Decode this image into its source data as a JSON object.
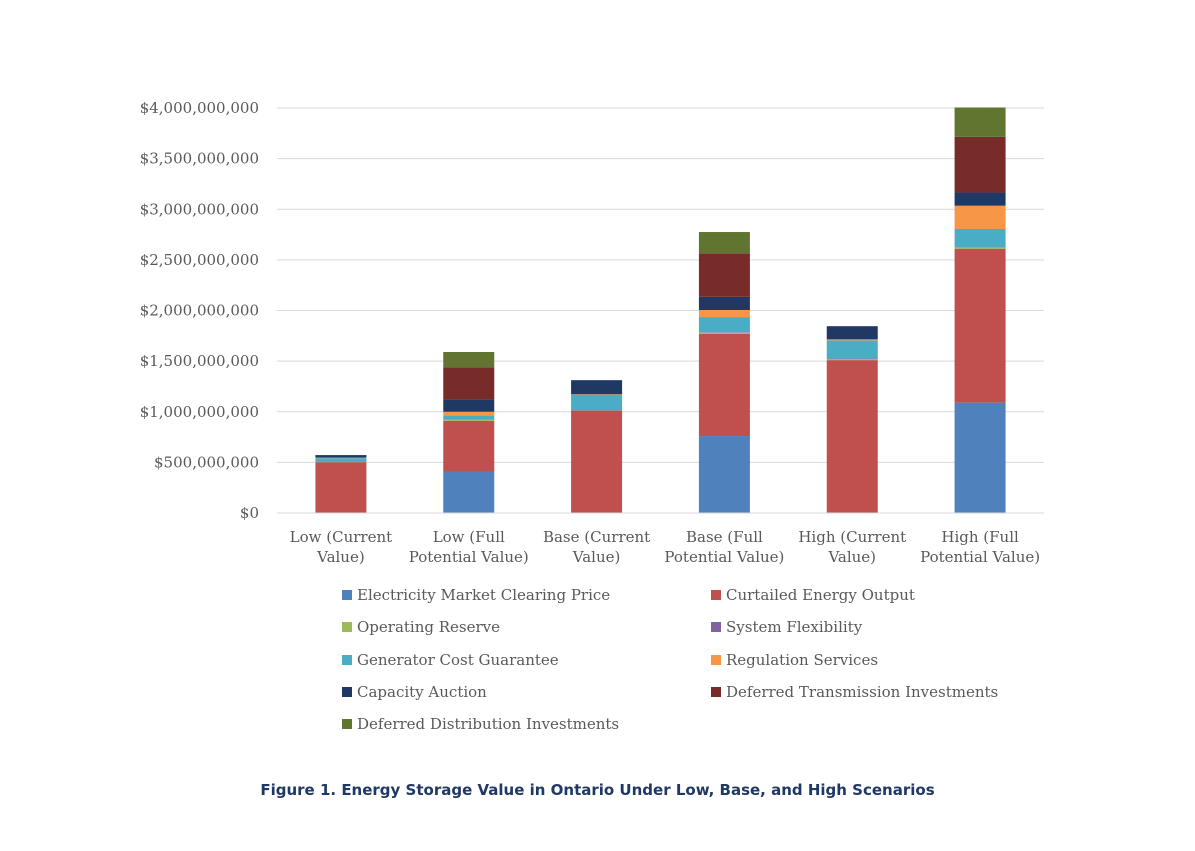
{
  "chart_data": {
    "type": "bar",
    "stacked": true,
    "title": "",
    "xlabel": "",
    "ylabel": "",
    "ylim": [
      0,
      4000000000
    ],
    "yticks": [
      0,
      500000000,
      1000000000,
      1500000000,
      2000000000,
      2500000000,
      3000000000,
      3500000000,
      4000000000
    ],
    "ytick_labels": [
      "$0",
      "$500,000,000",
      "$1,000,000,000",
      "$1,500,000,000",
      "$2,000,000,000",
      "$2,500,000,000",
      "$3,000,000,000",
      "$3,500,000,000",
      "$4,000,000,000"
    ],
    "categories": [
      [
        "Low (Current",
        "Value)"
      ],
      [
        "Low (Full",
        "Potential Value)"
      ],
      [
        "Base (Current",
        "Value)"
      ],
      [
        "Base (Full",
        "Potential Value)"
      ],
      [
        "High (Current",
        "Value)"
      ],
      [
        "High (Full",
        "Potential Value)"
      ]
    ],
    "series": [
      {
        "name": "Electricity Market Clearing Price",
        "color": "#4f81bd",
        "values": [
          0,
          410000000,
          0,
          760000000,
          0,
          1090000000
        ]
      },
      {
        "name": "Curtailed Energy Output",
        "color": "#c0504d",
        "values": [
          500000000,
          500000000,
          1010000000,
          1010000000,
          1510000000,
          1520000000
        ]
      },
      {
        "name": "Operating Reserve",
        "color": "#9bbb59",
        "values": [
          5000000,
          10000000,
          5000000,
          10000000,
          10000000,
          10000000
        ]
      },
      {
        "name": "System Flexibility",
        "color": "#8064a2",
        "values": [
          2000000,
          5000000,
          2000000,
          5000000,
          5000000,
          5000000
        ]
      },
      {
        "name": "Generator Cost Guarantee",
        "color": "#4bacc6",
        "values": [
          35000000,
          40000000,
          150000000,
          150000000,
          180000000,
          180000000
        ]
      },
      {
        "name": "Regulation Services",
        "color": "#f79646",
        "values": [
          5000000,
          35000000,
          5000000,
          70000000,
          10000000,
          230000000
        ]
      },
      {
        "name": "Capacity Auction",
        "color": "#1f3864",
        "values": [
          25000000,
          120000000,
          140000000,
          130000000,
          130000000,
          130000000
        ]
      },
      {
        "name": "Deferred Transmission Investments",
        "color": "#772c2a",
        "values": [
          0,
          320000000,
          0,
          430000000,
          0,
          550000000
        ]
      },
      {
        "name": "Deferred Distribution Investments",
        "color": "#5f7530",
        "values": [
          0,
          150000000,
          0,
          210000000,
          0,
          290000000
        ]
      }
    ]
  },
  "figure_caption": "Figure 1. Energy Storage Value in Ontario Under Low, Base, and High Scenarios"
}
